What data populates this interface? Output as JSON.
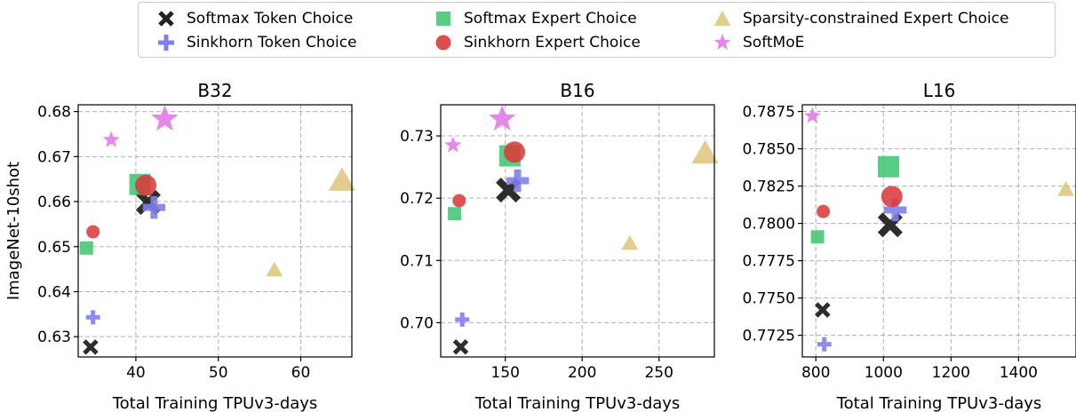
{
  "legend": {
    "entries": [
      {
        "label": "Softmax Token Choice",
        "marker": "x-icon",
        "color": "#222222"
      },
      {
        "label": "Sinkhorn Token Choice",
        "marker": "plus-icon",
        "color": "#8080e8"
      },
      {
        "label": "Softmax Expert Choice",
        "marker": "square-icon",
        "color": "#3cc46e"
      },
      {
        "label": "Sinkhorn Expert Choice",
        "marker": "circle-icon",
        "color": "#d93b3b"
      },
      {
        "label": "Sparsity-constrained Expert Choice",
        "marker": "triangle-icon",
        "color": "#dcc57a"
      },
      {
        "label": "SoftMoE",
        "marker": "star-icon",
        "color": "#e27be8"
      }
    ]
  },
  "chart_data": [
    {
      "type": "scatter",
      "title": "B32",
      "xlabel": "Total Training TPUv3-days",
      "ylabel": "ImageNet-10shot",
      "xlim": [
        33,
        66.2
      ],
      "ylim": [
        0.6255,
        0.6815
      ],
      "xticks": [
        40,
        50,
        60
      ],
      "yticks": [
        0.63,
        0.64,
        0.65,
        0.66,
        0.67,
        0.68
      ],
      "xtick_labels": [
        "40",
        "50",
        "60"
      ],
      "ytick_labels": [
        "0.63",
        "0.64",
        "0.65",
        "0.66",
        "0.67",
        "0.68"
      ],
      "grid": true,
      "series": [
        {
          "name": "Softmax Token Choice",
          "marker": "x",
          "color": "#222222",
          "points": [
            {
              "x": 34.5,
              "y": 0.6277,
              "s": 1
            },
            {
              "x": 41.5,
              "y": 0.6598,
              "s": 2
            }
          ]
        },
        {
          "name": "Sinkhorn Token Choice",
          "marker": "plus",
          "color": "#8080e8",
          "points": [
            {
              "x": 34.8,
              "y": 0.6343,
              "s": 1
            },
            {
              "x": 42.2,
              "y": 0.6587,
              "s": 2
            }
          ]
        },
        {
          "name": "Softmax Expert Choice",
          "marker": "square",
          "color": "#3cc46e",
          "points": [
            {
              "x": 34.0,
              "y": 0.6497,
              "s": 1
            },
            {
              "x": 40.5,
              "y": 0.6638,
              "s": 2
            }
          ]
        },
        {
          "name": "Sinkhorn Expert Choice",
          "marker": "circle",
          "color": "#d93b3b",
          "points": [
            {
              "x": 34.8,
              "y": 0.6533,
              "s": 1
            },
            {
              "x": 41.2,
              "y": 0.6636,
              "s": 2
            }
          ]
        },
        {
          "name": "Sparsity-constrained Expert Choice",
          "marker": "triangle",
          "color": "#dcc57a",
          "points": [
            {
              "x": 56.8,
              "y": 0.6449,
              "s": 1
            },
            {
              "x": 65.0,
              "y": 0.6648,
              "s": 2
            }
          ]
        },
        {
          "name": "SoftMoE",
          "marker": "star",
          "color": "#e27be8",
          "points": [
            {
              "x": 37.0,
              "y": 0.6737,
              "s": 1
            },
            {
              "x": 43.5,
              "y": 0.6783,
              "s": 2
            }
          ]
        }
      ]
    },
    {
      "type": "scatter",
      "title": "B16",
      "xlabel": "Total Training TPUv3-days",
      "ylabel": "",
      "xlim": [
        108,
        286
      ],
      "ylim": [
        0.6945,
        0.735
      ],
      "xticks": [
        150,
        200,
        250
      ],
      "yticks": [
        0.7,
        0.71,
        0.72,
        0.73
      ],
      "xtick_labels": [
        "150",
        "200",
        "250"
      ],
      "ytick_labels": [
        "0.70",
        "0.71",
        "0.72",
        "0.73"
      ],
      "grid": true,
      "series": [
        {
          "name": "Softmax Token Choice",
          "marker": "x",
          "color": "#222222",
          "points": [
            {
              "x": 121,
              "y": 0.6961,
              "s": 1
            },
            {
              "x": 152,
              "y": 0.7213,
              "s": 2
            }
          ]
        },
        {
          "name": "Sinkhorn Token Choice",
          "marker": "plus",
          "color": "#8080e8",
          "points": [
            {
              "x": 122,
              "y": 0.7005,
              "s": 1
            },
            {
              "x": 158,
              "y": 0.7228,
              "s": 2
            }
          ]
        },
        {
          "name": "Softmax Expert Choice",
          "marker": "square",
          "color": "#3cc46e",
          "points": [
            {
              "x": 117,
              "y": 0.7175,
              "s": 1
            },
            {
              "x": 153,
              "y": 0.7268,
              "s": 2
            }
          ]
        },
        {
          "name": "Sinkhorn Expert Choice",
          "marker": "circle",
          "color": "#d93b3b",
          "points": [
            {
              "x": 120,
              "y": 0.7196,
              "s": 1
            },
            {
              "x": 156,
              "y": 0.7274,
              "s": 2
            }
          ]
        },
        {
          "name": "Sparsity-constrained Expert Choice",
          "marker": "triangle",
          "color": "#dcc57a",
          "points": [
            {
              "x": 231,
              "y": 0.7128,
              "s": 1
            },
            {
              "x": 280,
              "y": 0.7273,
              "s": 2
            }
          ]
        },
        {
          "name": "SoftMoE",
          "marker": "star",
          "color": "#e27be8",
          "points": [
            {
              "x": 116,
              "y": 0.7285,
              "s": 1
            },
            {
              "x": 148,
              "y": 0.7327,
              "s": 2
            }
          ]
        }
      ]
    },
    {
      "type": "scatter",
      "title": "L16",
      "xlabel": "Total Training TPUv3-days",
      "ylabel": "",
      "xlim": [
        760,
        1570
      ],
      "ylim": [
        0.77105,
        0.78795
      ],
      "xticks": [
        800,
        1000,
        1200,
        1400
      ],
      "yticks": [
        0.7725,
        0.775,
        0.7775,
        0.78,
        0.7825,
        0.785,
        0.7875
      ],
      "xtick_labels": [
        "800",
        "1000",
        "1200",
        "1400"
      ],
      "ytick_labels": [
        "0.7725",
        "0.7750",
        "0.7775",
        "0.7800",
        "0.7825",
        "0.7850",
        "0.7875"
      ],
      "grid": true,
      "series": [
        {
          "name": "Softmax Token Choice",
          "marker": "x",
          "color": "#222222",
          "points": [
            {
              "x": 820,
              "y": 0.7742,
              "s": 1
            },
            {
              "x": 1020,
              "y": 0.7799,
              "s": 2
            }
          ]
        },
        {
          "name": "Sinkhorn Token Choice",
          "marker": "plus",
          "color": "#8080e8",
          "points": [
            {
              "x": 825,
              "y": 0.7719,
              "s": 1
            },
            {
              "x": 1035,
              "y": 0.7809,
              "s": 2
            }
          ]
        },
        {
          "name": "Softmax Expert Choice",
          "marker": "square",
          "color": "#3cc46e",
          "points": [
            {
              "x": 805,
              "y": 0.7791,
              "s": 1
            },
            {
              "x": 1015,
              "y": 0.7838,
              "s": 2
            }
          ]
        },
        {
          "name": "Sinkhorn Expert Choice",
          "marker": "circle",
          "color": "#d93b3b",
          "points": [
            {
              "x": 822,
              "y": 0.7808,
              "s": 1
            },
            {
              "x": 1025,
              "y": 0.7818,
              "s": 2
            }
          ]
        },
        {
          "name": "Sparsity-constrained Expert Choice",
          "marker": "triangle",
          "color": "#dcc57a",
          "points": [
            {
              "x": 1540,
              "y": 0.7823,
              "s": 1
            }
          ]
        },
        {
          "name": "SoftMoE",
          "marker": "star",
          "color": "#e27be8",
          "points": [
            {
              "x": 790,
              "y": 0.7872,
              "s": 1
            }
          ]
        }
      ]
    }
  ]
}
